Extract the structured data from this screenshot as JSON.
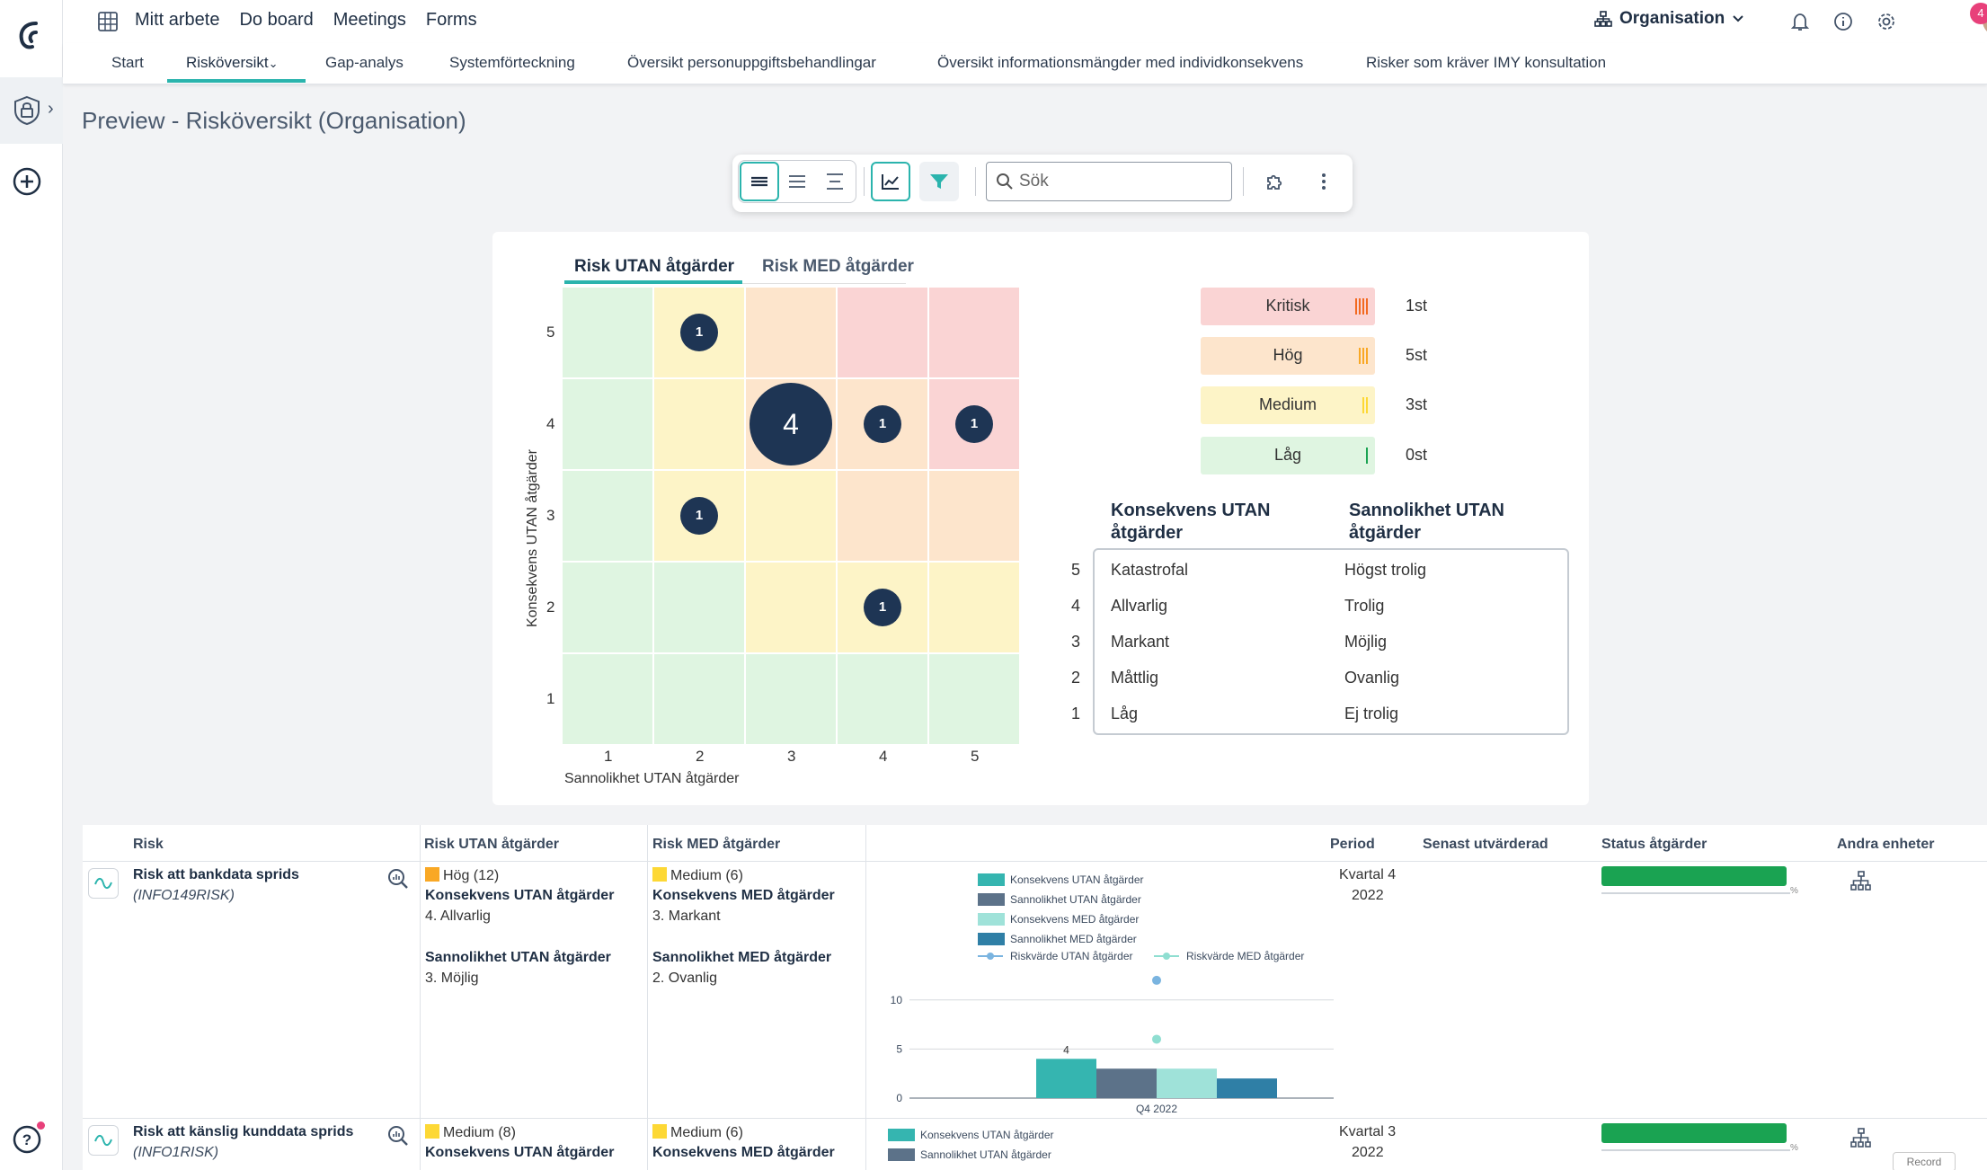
{
  "topnav": [
    "Mitt arbete",
    "Do board",
    "Meetings",
    "Forms"
  ],
  "org_label": "Organisation",
  "notification_count": "4",
  "subnav": [
    "Start",
    "Risköversikt",
    "Gap-analys",
    "Systemförteckning",
    "Översikt personuppgiftsbehandlingar",
    "Översikt informationsmängder med individkonsekvens",
    "Risker som kräver IMY konsultation"
  ],
  "page_title": "Preview - Risköversikt (Organisation)",
  "search_placeholder": "Sök",
  "matrix": {
    "tab_without": "Risk UTAN åtgärder",
    "tab_with": "Risk MED åtgärder",
    "y_label": "Konsekvens UTAN åtgärder",
    "x_label": "Sannolikhet UTAN åtgärder",
    "ticks": [
      "1",
      "2",
      "3",
      "4",
      "5"
    ],
    "bubbles": [
      {
        "likelihood": 2,
        "consequence": 5,
        "count": "1"
      },
      {
        "likelihood": 3,
        "consequence": 4,
        "count": "4"
      },
      {
        "likelihood": 4,
        "consequence": 4,
        "count": "1"
      },
      {
        "likelihood": 5,
        "consequence": 4,
        "count": "1"
      },
      {
        "likelihood": 2,
        "consequence": 3,
        "count": "1"
      },
      {
        "likelihood": 4,
        "consequence": 2,
        "count": "1"
      }
    ]
  },
  "legend": [
    {
      "label": "Kritisk",
      "count": "1st",
      "color": "#fad4d4"
    },
    {
      "label": "Hög",
      "count": "5st",
      "color": "#fde5cc"
    },
    {
      "label": "Medium",
      "count": "3st",
      "color": "#fdf4c7"
    },
    {
      "label": "Låg",
      "count": "0st",
      "color": "#dff5e1"
    }
  ],
  "scale": {
    "title_consequence": [
      "Konsekvens UTAN",
      "åtgärder"
    ],
    "title_likelihood": [
      "Sannolikhet UTAN",
      "åtgärder"
    ],
    "rows": [
      {
        "n": "5",
        "consequence": "Katastrofal",
        "likelihood": "Högst trolig"
      },
      {
        "n": "4",
        "consequence": "Allvarlig",
        "likelihood": "Trolig"
      },
      {
        "n": "3",
        "consequence": "Markant",
        "likelihood": "Möjlig"
      },
      {
        "n": "2",
        "consequence": "Måttlig",
        "likelihood": "Ovanlig"
      },
      {
        "n": "1",
        "consequence": "Låg",
        "likelihood": "Ej trolig"
      }
    ]
  },
  "table": {
    "headers": {
      "risk": "Risk",
      "without": "Risk UTAN åtgärder",
      "with": "Risk MED åtgärder",
      "period": "Period",
      "evaluated": "Senast utvärderad",
      "status": "Status åtgärder",
      "units": "Andra enheter"
    },
    "rows": [
      {
        "name": "Risk att bankdata sprids",
        "code": "(INFO149RISK)",
        "without_level": "Hög (12)",
        "without_color": "#f9a825",
        "with_level": "Medium (6)",
        "with_color": "#fdd835",
        "cons_without_label": "Konsekvens UTAN åtgärder",
        "cons_without": "4. Allvarlig",
        "like_without_label": "Sannolikhet UTAN åtgärder",
        "like_without": "3. Möjlig",
        "cons_with_label": "Konsekvens MED åtgärder",
        "cons_with": "3. Markant",
        "like_with_label": "Sannolikhet MED åtgärder",
        "like_with": "2. Ovanlig",
        "period": "Kvartal 4",
        "year": "2022"
      },
      {
        "name": "Risk att känslig kunddata sprids",
        "code": "(INFO1RISK)",
        "without_level": "Medium (8)",
        "without_color": "#fdd835",
        "with_level": "Medium (6)",
        "with_color": "#fdd835",
        "cons_without_label": "Konsekvens UTAN åtgärder",
        "cons_with_label": "Konsekvens MED åtgärder",
        "period": "Kvartal 3",
        "year": "2022"
      }
    ]
  },
  "chart_data": {
    "type": "bar",
    "categories": [
      "Q4 2022"
    ],
    "series": [
      {
        "name": "Konsekvens UTAN åtgärder",
        "values": [
          4
        ],
        "color": "#35b5b0"
      },
      {
        "name": "Sannolikhet UTAN åtgärder",
        "values": [
          3
        ],
        "color": "#5c7289"
      },
      {
        "name": "Konsekvens MED åtgärder",
        "values": [
          3
        ],
        "color": "#9fe2d9"
      },
      {
        "name": "Sannolikhet MED åtgärder",
        "values": [
          2
        ],
        "color": "#2f7fa6"
      },
      {
        "name": "Riskvärde UTAN åtgärder",
        "type": "line",
        "values": [
          12
        ],
        "color": "#7ab4e0"
      },
      {
        "name": "Riskvärde MED åtgärder",
        "type": "line",
        "values": [
          6
        ],
        "color": "#8fded1"
      }
    ],
    "data_labels": [
      "4"
    ],
    "yticks": [
      "0",
      "5",
      "10"
    ],
    "ylim": [
      0,
      13
    ]
  },
  "row2_legend": [
    "Konsekvens UTAN åtgärder",
    "Sannolikhet UTAN åtgärder"
  ],
  "partial_button": "Record"
}
